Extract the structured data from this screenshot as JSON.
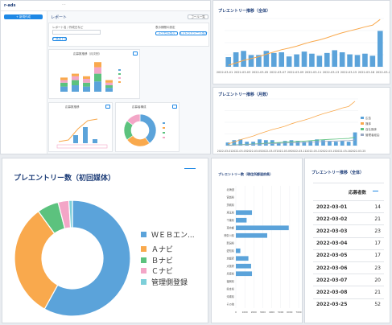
{
  "app": {
    "logo_text": "r-ads",
    "new_button": "+ 新規作成",
    "report_title": "レポート",
    "tab_label": "ゴール一覧",
    "add_button": "+ 追加する",
    "link1": "エクセル出力",
    "link2": "スプレッドシート出力",
    "field_label": "レポート名 / 作成日など",
    "filter_label": "表示期間の設定"
  },
  "mini_widgets": {
    "bar_title": "応募数推移（月次別）",
    "line_title": "応募数推移",
    "donut_title": "応募者構成"
  },
  "colors": {
    "blue": "#5ba3da",
    "orange": "#f9a94d",
    "green": "#5cc27e",
    "pink": "#f3a6c7",
    "teal": "#7dcfd9",
    "navy": "#1d3d78"
  },
  "chart_data": [
    {
      "type": "bar",
      "title": "プレエントリー推移（全体）",
      "categories": [
        "2022-03-01",
        "2022-03-02",
        "2022-03-03",
        "2022-03-04",
        "2022-03-05",
        "2022-03-06",
        "2022-03-07",
        "2022-03-08",
        "2022-03-09",
        "2022-03-10",
        "2022-03-11",
        "2022-03-12",
        "2022-03-13",
        "2022-03-14",
        "2022-03-15",
        "2022-03-16",
        "2022-03-17",
        "2022-03-18",
        "2022-03-19",
        "2022-03-20",
        "2022-03-25"
      ],
      "x_tick_labels": [
        "2022-03-01",
        "2022-03-03",
        "2022-03-05",
        "2022-03-07",
        "2022-03-09",
        "2022-03-11",
        "2022-03-13",
        "2022-03-15",
        "2022-03-18",
        "2022-03-25"
      ],
      "values": [
        14,
        21,
        23,
        17,
        17,
        23,
        20,
        21,
        15,
        18,
        22,
        19,
        16,
        20,
        24,
        21,
        18,
        17,
        19,
        16,
        52
      ],
      "ylim": [
        0,
        70
      ]
    },
    {
      "type": "bar",
      "title": "プレエントリー推移（月数）",
      "categories": [
        "2022-03-01",
        "2022-03-02",
        "2022-03-03",
        "2022-03-04",
        "2022-03-05",
        "2022-03-06",
        "2022-03-07",
        "2022-03-08",
        "2022-03-09",
        "2022-03-10",
        "2022-03-11",
        "2022-03-12",
        "2022-03-13",
        "2022-03-14",
        "2022-03-15",
        "2022-03-16",
        "2022-03-17",
        "2022-03-18",
        "2022-03-19",
        "2022-03-20",
        "2022-03-25"
      ],
      "x_tick_labels": [
        "2022-03-01",
        "2022-03-03",
        "2022-03-05",
        "2022-03-07",
        "2022-03-09",
        "2022-03-11",
        "2022-03-13",
        "2022-03-15",
        "2022-03-18",
        "2022-03-25"
      ],
      "series": [
        {
          "name": "広告",
          "values": [
            4,
            7,
            8,
            5,
            5,
            8,
            7,
            7,
            4,
            6,
            7,
            6,
            5,
            6,
            8,
            7,
            6,
            5,
            6,
            5,
            17
          ]
        },
        {
          "name": "媒体",
          "values": [
            6,
            8,
            9,
            7,
            7,
            9,
            8,
            8,
            6,
            7,
            9,
            8,
            6,
            8,
            9,
            8,
            7,
            7,
            8,
            6,
            20
          ]
        },
        {
          "name": "自社媒体",
          "values": [
            2,
            3,
            3,
            2,
            2,
            3,
            3,
            3,
            2,
            3,
            3,
            3,
            2,
            3,
            4,
            3,
            3,
            2,
            3,
            2,
            9
          ]
        },
        {
          "name": "管理者経由",
          "values": [
            2,
            3,
            3,
            3,
            3,
            3,
            2,
            3,
            3,
            2,
            3,
            2,
            3,
            3,
            3,
            3,
            2,
            3,
            2,
            3,
            6
          ]
        }
      ],
      "ylim": [
        0,
        60
      ]
    },
    {
      "type": "pie",
      "title": "プレエントリー数（初回媒体）",
      "labels": [
        "ＷＥＢエン...",
        "Ａナビ",
        "Ｂナビ",
        "Ｃナビ",
        "管理側登録"
      ],
      "values": [
        58,
        32,
        6,
        3,
        1
      ]
    },
    {
      "type": "bar",
      "title": "プレエントリー数（現住所都道府県）",
      "categories": [
        "北海道",
        "宮城県",
        "茨城県",
        "埼玉県",
        "千葉県",
        "東京都",
        "神奈川県",
        "新潟県",
        "愛知県",
        "京都府",
        "大阪府",
        "兵庫県",
        "福岡県",
        "熊本県",
        "沖縄県",
        "その他"
      ],
      "values": [
        0,
        0,
        0,
        1800,
        1200,
        5900,
        3500,
        0,
        500,
        1400,
        1700,
        1800,
        0,
        0,
        0,
        0
      ],
      "xlim": [
        0,
        7000
      ],
      "x_tick_labels": [
        "0",
        "1000",
        "2000",
        "3000",
        "4000",
        "5000",
        "6000",
        "7000"
      ]
    },
    {
      "type": "table",
      "title": "プレエントリー推移（全体）",
      "columns": [
        "",
        "応募者数"
      ],
      "rows": [
        [
          "2022-03-01",
          "14"
        ],
        [
          "2022-03-02",
          "21"
        ],
        [
          "2022-03-03",
          "23"
        ],
        [
          "2022-03-04",
          "17"
        ],
        [
          "2022-03-05",
          "17"
        ],
        [
          "2022-03-06",
          "23"
        ],
        [
          "2022-03-07",
          "20"
        ],
        [
          "2022-03-08",
          "21"
        ],
        [
          "2022-03-25",
          "52"
        ]
      ]
    }
  ]
}
